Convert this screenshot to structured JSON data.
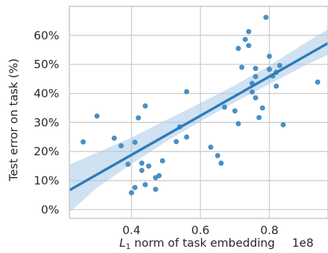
{
  "chart_data": {
    "type": "scatter",
    "title": "",
    "xlabel": "L1 norm of task embedding",
    "xlabel_parts": {
      "symbol": "L",
      "subscript": "1",
      "rest": " norm of task embedding"
    },
    "x_offset_label": "1e8",
    "ylabel": "Test error on task (%)",
    "xlim": [
      0.22,
      0.97
    ],
    "ylim": [
      -3,
      70
    ],
    "xticks": [
      0.4,
      0.6,
      0.8
    ],
    "xtick_labels": [
      "0.4",
      "0.6",
      "0.8"
    ],
    "yticks": [
      0,
      10,
      20,
      30,
      40,
      50,
      60
    ],
    "ytick_labels": [
      "0%",
      "10%",
      "20%",
      "30%",
      "40%",
      "50%",
      "60%"
    ],
    "grid": true,
    "colors": {
      "points": "#4a8fc4",
      "line": "#2b7bba",
      "band": "#a9cbe6",
      "grid": "#cccccc",
      "axes": "#cccccc",
      "text": "#262626"
    },
    "points": [
      {
        "x": 0.26,
        "y": 23.3
      },
      {
        "x": 0.3,
        "y": 32.2
      },
      {
        "x": 0.35,
        "y": 24.6
      },
      {
        "x": 0.37,
        "y": 22.0
      },
      {
        "x": 0.39,
        "y": 15.6
      },
      {
        "x": 0.4,
        "y": 5.8
      },
      {
        "x": 0.41,
        "y": 7.6
      },
      {
        "x": 0.41,
        "y": 23.2
      },
      {
        "x": 0.42,
        "y": 31.6
      },
      {
        "x": 0.43,
        "y": 13.5
      },
      {
        "x": 0.43,
        "y": 16.0
      },
      {
        "x": 0.44,
        "y": 35.7
      },
      {
        "x": 0.44,
        "y": 8.6
      },
      {
        "x": 0.45,
        "y": 15.0
      },
      {
        "x": 0.47,
        "y": 7.0
      },
      {
        "x": 0.47,
        "y": 11.0
      },
      {
        "x": 0.48,
        "y": 11.7
      },
      {
        "x": 0.49,
        "y": 16.8
      },
      {
        "x": 0.53,
        "y": 23.4
      },
      {
        "x": 0.54,
        "y": 28.5
      },
      {
        "x": 0.56,
        "y": 25.0
      },
      {
        "x": 0.56,
        "y": 40.6
      },
      {
        "x": 0.63,
        "y": 21.5
      },
      {
        "x": 0.65,
        "y": 18.6
      },
      {
        "x": 0.66,
        "y": 16.0
      },
      {
        "x": 0.67,
        "y": 35.3
      },
      {
        "x": 0.7,
        "y": 34.0
      },
      {
        "x": 0.71,
        "y": 29.6
      },
      {
        "x": 0.71,
        "y": 55.5
      },
      {
        "x": 0.72,
        "y": 49.0
      },
      {
        "x": 0.73,
        "y": 58.6
      },
      {
        "x": 0.74,
        "y": 61.3
      },
      {
        "x": 0.74,
        "y": 56.5
      },
      {
        "x": 0.75,
        "y": 43.5
      },
      {
        "x": 0.75,
        "y": 40.5
      },
      {
        "x": 0.76,
        "y": 48.6
      },
      {
        "x": 0.76,
        "y": 45.8
      },
      {
        "x": 0.76,
        "y": 38.5
      },
      {
        "x": 0.77,
        "y": 31.7
      },
      {
        "x": 0.78,
        "y": 35.0
      },
      {
        "x": 0.79,
        "y": 66.2
      },
      {
        "x": 0.8,
        "y": 52.8
      },
      {
        "x": 0.8,
        "y": 48.3
      },
      {
        "x": 0.81,
        "y": 46.0
      },
      {
        "x": 0.82,
        "y": 47.3
      },
      {
        "x": 0.82,
        "y": 42.5
      },
      {
        "x": 0.83,
        "y": 49.6
      },
      {
        "x": 0.84,
        "y": 29.2
      },
      {
        "x": 0.94,
        "y": 43.9
      }
    ],
    "regression": {
      "slope": 67.5,
      "intercept": -8.17
    },
    "confidence_band": {
      "x": [
        0.22,
        0.3,
        0.4,
        0.5,
        0.6,
        0.7,
        0.8,
        0.9,
        0.97
      ],
      "lower": [
        -1.0,
        7.5,
        15.7,
        23.4,
        30.4,
        37.0,
        43.2,
        49.4,
        53.3
      ],
      "upper": [
        15.5,
        19.6,
        24.8,
        30.8,
        36.7,
        42.8,
        49.6,
        57.1,
        62.1
      ]
    }
  }
}
